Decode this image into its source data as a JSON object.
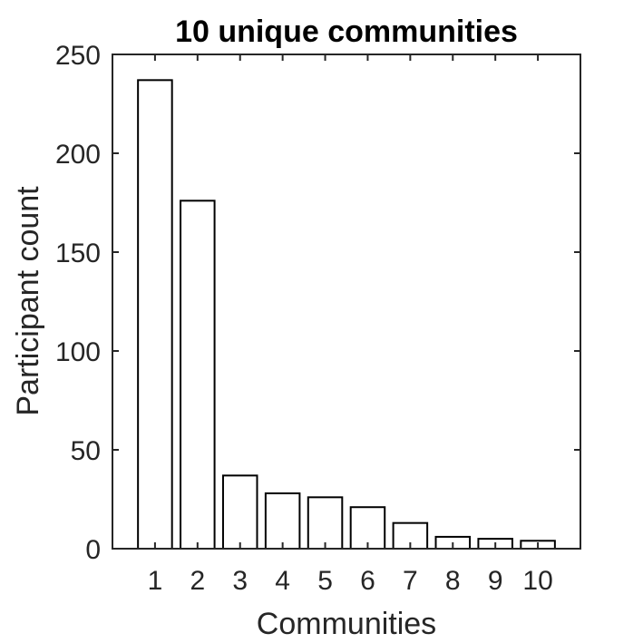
{
  "chart_data": {
    "type": "bar",
    "title": "10 unique communities",
    "xlabel": "Communities",
    "ylabel": "Participant count",
    "categories": [
      "1",
      "2",
      "3",
      "4",
      "5",
      "6",
      "7",
      "8",
      "9",
      "10"
    ],
    "values": [
      237,
      176,
      37,
      28,
      26,
      21,
      13,
      6,
      5,
      4
    ],
    "ylim": [
      0,
      250
    ],
    "yticks": [
      0,
      50,
      100,
      150,
      200,
      250
    ],
    "grid": false,
    "bar_color": "#ffffff",
    "edge_color": "#000000",
    "axis_color": "#262626"
  }
}
